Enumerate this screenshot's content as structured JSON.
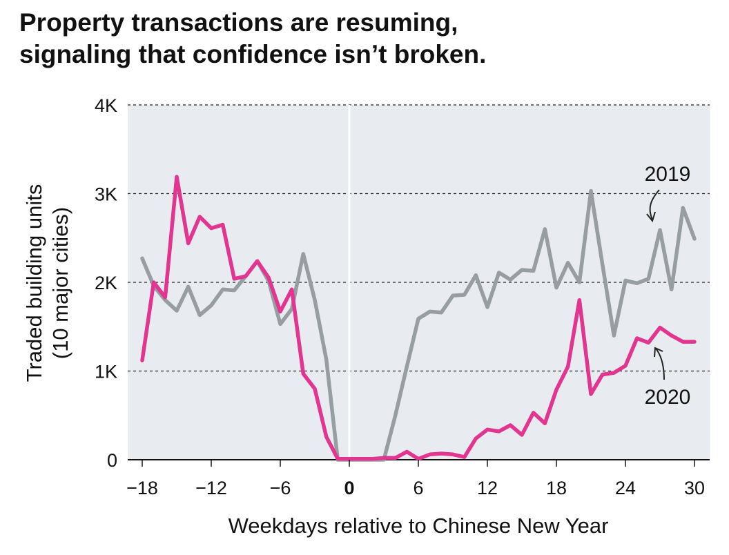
{
  "chart_data": {
    "type": "line",
    "title_line1": "Property transactions are resuming,",
    "title_line2": "signaling that confidence isn’t broken.",
    "xlabel": "Weekdays relative to Chinese New Year",
    "ylabel_line1": "Traded building units",
    "ylabel_line2": "(10 major cities)",
    "xlim": [
      -18,
      30
    ],
    "ylim": [
      0,
      4000
    ],
    "x_ticks": [
      -18,
      -12,
      -6,
      0,
      6,
      12,
      18,
      24,
      30
    ],
    "x_tick_labels": [
      "−18",
      "−12",
      "−6",
      "0",
      "6",
      "12",
      "18",
      "24",
      "30"
    ],
    "y_ticks": [
      0,
      1000,
      2000,
      3000,
      4000
    ],
    "y_tick_labels": [
      "0",
      "1K",
      "2K",
      "3K",
      "4K"
    ],
    "grid": "horizontal dashed",
    "zero_line_x": 0,
    "series": [
      {
        "name": "2019",
        "color": "#969ea2",
        "x": [
          -18,
          -17,
          -16,
          -15,
          -14,
          -13,
          -12,
          -11,
          -10,
          -9,
          -8,
          -7,
          -6,
          -5,
          -4,
          -3,
          -2,
          -1,
          0,
          1,
          2,
          3,
          4,
          5,
          6,
          7,
          8,
          9,
          10,
          11,
          12,
          13,
          14,
          15,
          16,
          17,
          18,
          19,
          20,
          21,
          22,
          23,
          24,
          25,
          26,
          27,
          28,
          29,
          30
        ],
        "values": [
          2270,
          1960,
          1800,
          1680,
          1950,
          1630,
          1740,
          1920,
          1910,
          2070,
          2240,
          2010,
          1530,
          1700,
          2320,
          1800,
          1130,
          0,
          0,
          0,
          0,
          0,
          500,
          1050,
          1590,
          1670,
          1660,
          1850,
          1860,
          2080,
          1720,
          2110,
          2030,
          2140,
          2130,
          2600,
          1940,
          2220,
          2000,
          3030,
          2200,
          1400,
          2020,
          1990,
          2040,
          2590,
          1920,
          2840,
          2490
        ]
      },
      {
        "name": "2020",
        "color": "#e1358f",
        "x": [
          -18,
          -17,
          -16,
          -15,
          -14,
          -13,
          -12,
          -11,
          -10,
          -9,
          -8,
          -7,
          -6,
          -5,
          -4,
          -3,
          -2,
          -1,
          0,
          1,
          2,
          3,
          4,
          5,
          6,
          7,
          8,
          9,
          10,
          11,
          12,
          13,
          14,
          15,
          16,
          17,
          18,
          19,
          20,
          21,
          22,
          23,
          24,
          25,
          26,
          27,
          28,
          29,
          30
        ],
        "values": [
          1120,
          2000,
          1830,
          3190,
          2440,
          2740,
          2610,
          2650,
          2040,
          2070,
          2240,
          2050,
          1670,
          1920,
          970,
          800,
          260,
          10,
          10,
          10,
          10,
          20,
          20,
          90,
          10,
          60,
          70,
          60,
          30,
          240,
          340,
          320,
          390,
          280,
          530,
          410,
          790,
          1050,
          1800,
          740,
          960,
          980,
          1060,
          1370,
          1320,
          1490,
          1400,
          1330,
          1330
        ]
      }
    ],
    "annotations": {
      "label_2019": "2019",
      "label_2020": "2020"
    }
  },
  "colors": {
    "plot_background": "#e8ebef",
    "grid": "#222222",
    "zero_line": "#ffffff"
  }
}
